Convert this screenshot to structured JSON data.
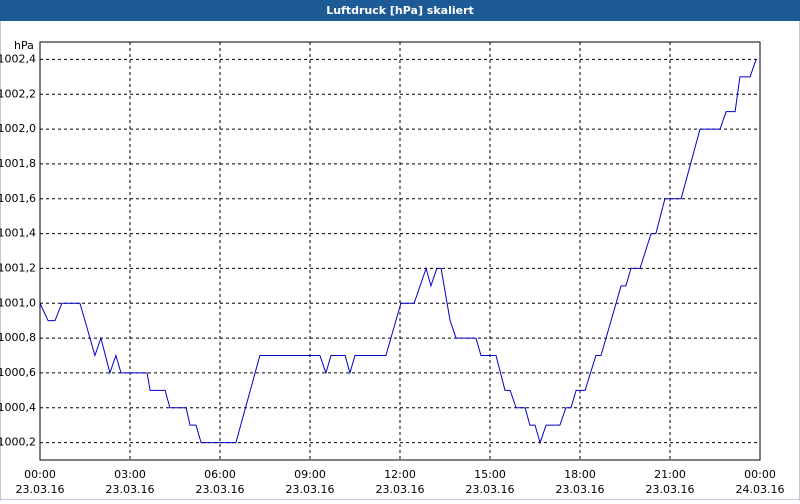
{
  "chart_data": {
    "type": "line",
    "title": "Luftdruck [hPa] skaliert",
    "y_unit": "hPa",
    "xlim": [
      0,
      24
    ],
    "ylim": [
      1000.1,
      1002.5
    ],
    "grid": true,
    "xticks": [
      {
        "value": 0,
        "label": "00:00",
        "sublabel": "23.03.16"
      },
      {
        "value": 3,
        "label": "03:00",
        "sublabel": "23.03.16"
      },
      {
        "value": 6,
        "label": "06:00",
        "sublabel": "23.03.16"
      },
      {
        "value": 9,
        "label": "09:00",
        "sublabel": "23.03.16"
      },
      {
        "value": 12,
        "label": "12:00",
        "sublabel": "23.03.16"
      },
      {
        "value": 15,
        "label": "15:00",
        "sublabel": "23.03.16"
      },
      {
        "value": 18,
        "label": "18:00",
        "sublabel": "23.03.16"
      },
      {
        "value": 21,
        "label": "21:00",
        "sublabel": "23.03.16"
      },
      {
        "value": 24,
        "label": "00:00",
        "sublabel": "24.03.16"
      }
    ],
    "yticks": [
      {
        "value": 1000.2,
        "label": "1000,2"
      },
      {
        "value": 1000.4,
        "label": "1000,4"
      },
      {
        "value": 1000.6,
        "label": "1000,6"
      },
      {
        "value": 1000.8,
        "label": "1000,8"
      },
      {
        "value": 1001.0,
        "label": "1001,0"
      },
      {
        "value": 1001.2,
        "label": "1001,2"
      },
      {
        "value": 1001.4,
        "label": "1001,4"
      },
      {
        "value": 1001.6,
        "label": "1001,6"
      },
      {
        "value": 1001.8,
        "label": "1001,8"
      },
      {
        "value": 1002.0,
        "label": "1002,0"
      },
      {
        "value": 1002.2,
        "label": "1002,2"
      },
      {
        "value": 1002.4,
        "label": "1002,4"
      }
    ],
    "series": [
      {
        "color": "#0000cc",
        "x": [
          0,
          0.27,
          0.5,
          0.73,
          1.33,
          1.5,
          1.83,
          2.03,
          2.33,
          2.53,
          2.7,
          3.57,
          3.67,
          4.17,
          4.33,
          4.87,
          5.0,
          5.2,
          5.37,
          6.53,
          7.33,
          9.33,
          9.53,
          9.7,
          10.17,
          10.33,
          10.5,
          11.53,
          12.03,
          12.47,
          12.87,
          13.03,
          13.23,
          13.37,
          13.67,
          13.87,
          14.53,
          14.7,
          15.2,
          15.5,
          15.67,
          15.87,
          16.17,
          16.33,
          16.5,
          16.67,
          16.87,
          17.33,
          17.53,
          17.7,
          17.87,
          18.17,
          18.53,
          18.7,
          19.37,
          19.53,
          19.7,
          20.0,
          20.37,
          20.53,
          20.83,
          21.37,
          22.0,
          22.67,
          22.87,
          23.17,
          23.33,
          23.67,
          23.87
        ],
        "values": [
          1001.0,
          1000.9,
          1000.9,
          1001.0,
          1001.0,
          1000.9,
          1000.7,
          1000.8,
          1000.6,
          1000.7,
          1000.6,
          1000.6,
          1000.5,
          1000.5,
          1000.4,
          1000.4,
          1000.3,
          1000.3,
          1000.2,
          1000.2,
          1000.7,
          1000.7,
          1000.6,
          1000.7,
          1000.7,
          1000.6,
          1000.7,
          1000.7,
          1001.0,
          1001.0,
          1001.2,
          1001.1,
          1001.2,
          1001.2,
          1000.9,
          1000.8,
          1000.8,
          1000.7,
          1000.7,
          1000.5,
          1000.5,
          1000.4,
          1000.4,
          1000.3,
          1000.3,
          1000.2,
          1000.3,
          1000.3,
          1000.4,
          1000.4,
          1000.5,
          1000.5,
          1000.7,
          1000.7,
          1001.1,
          1001.1,
          1001.2,
          1001.2,
          1001.4,
          1001.4,
          1001.6,
          1001.6,
          1002.0,
          1002.0,
          1002.1,
          1002.1,
          1002.3,
          1002.3,
          1002.4
        ]
      }
    ]
  }
}
